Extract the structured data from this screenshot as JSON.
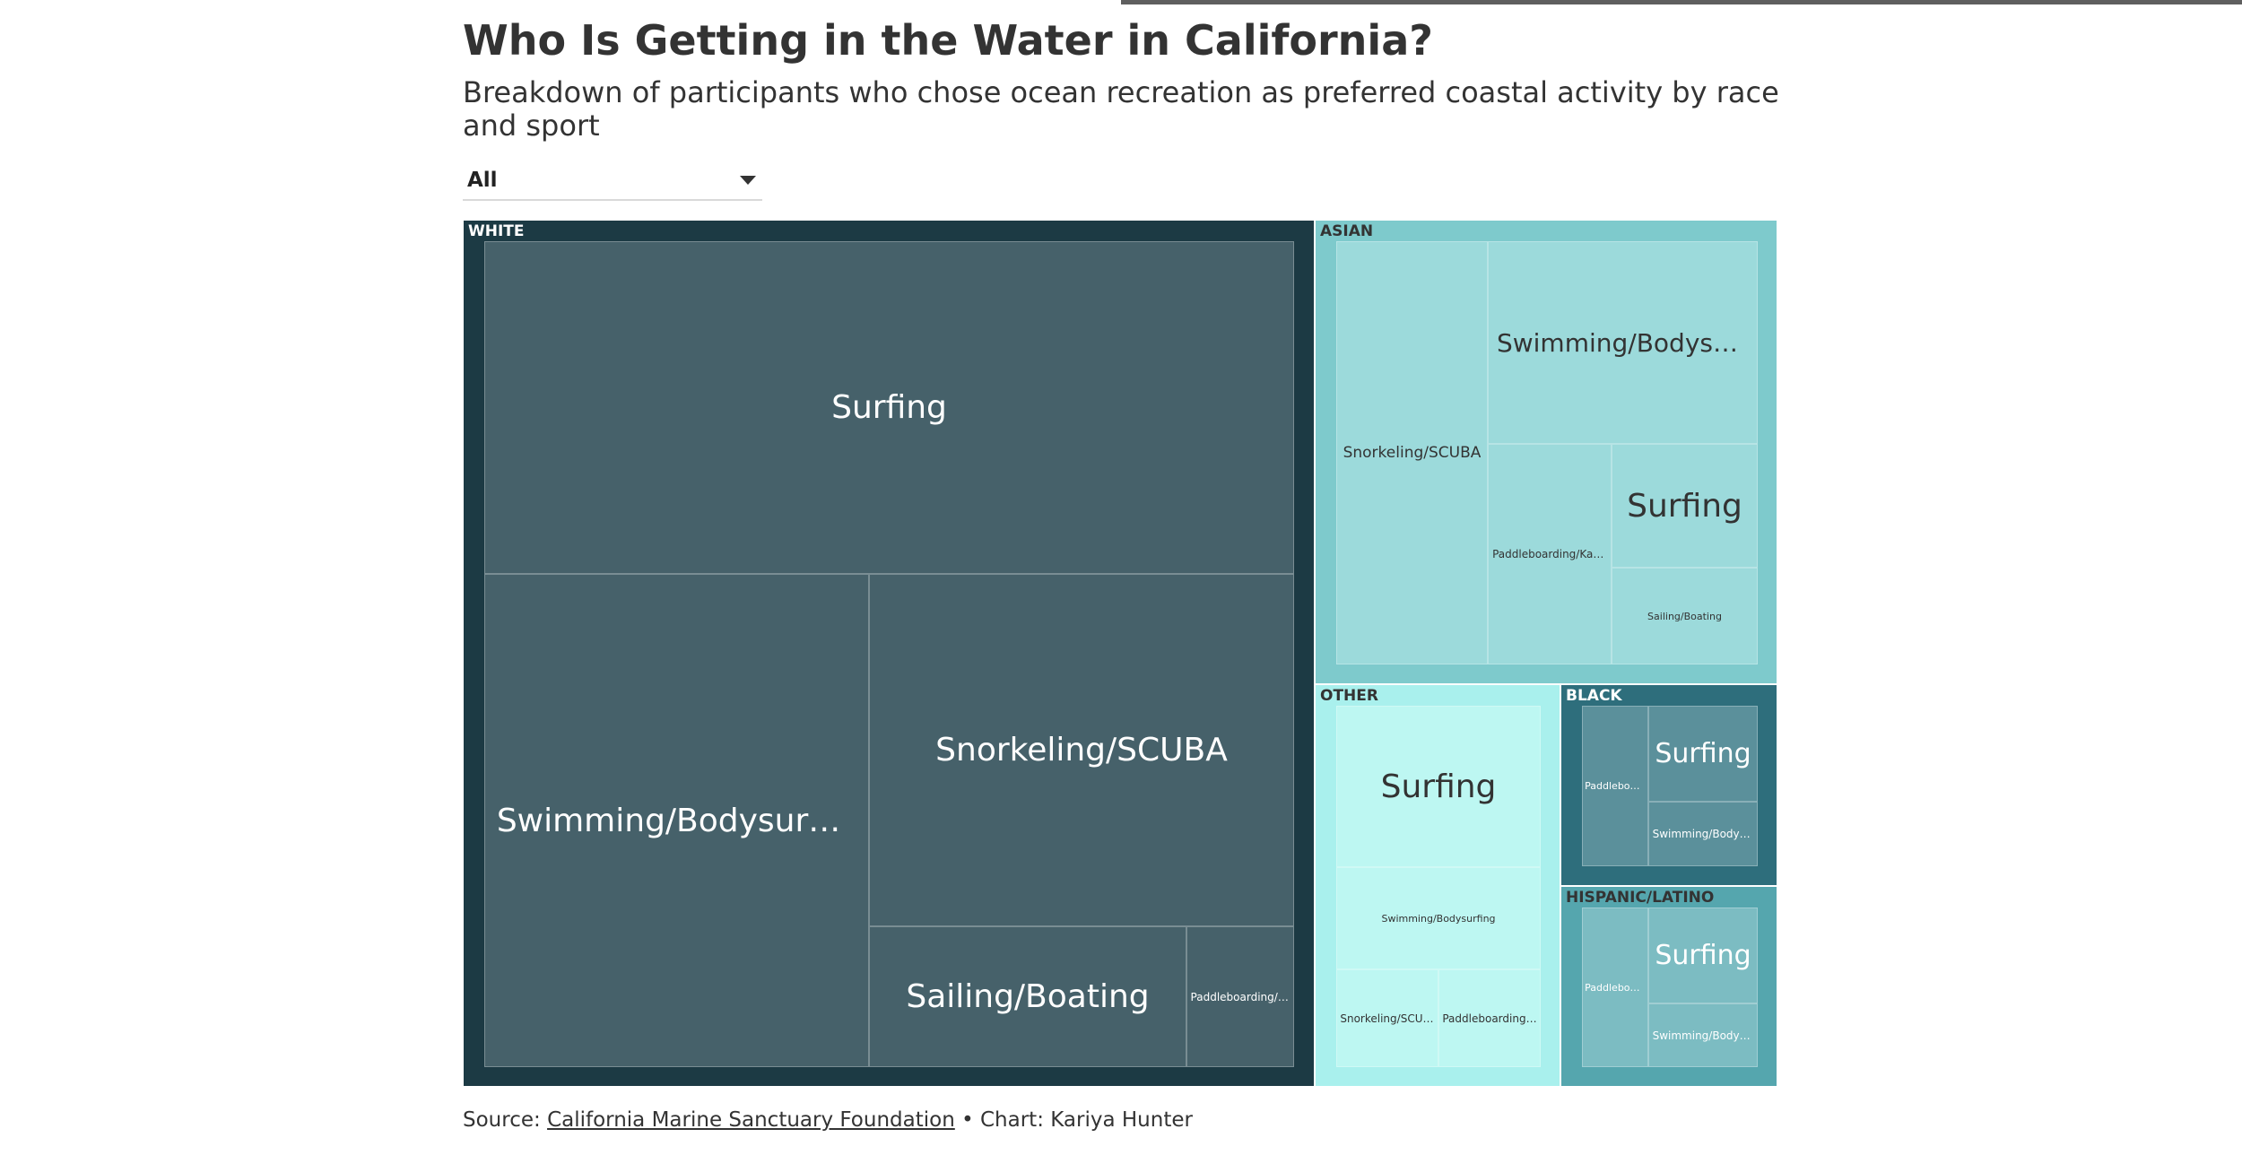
{
  "header": {
    "title": "Who Is Getting in the Water in California?",
    "subtitle": "Breakdown of participants who chose ocean recreation as preferred coastal activity by race and sport"
  },
  "filter": {
    "selected": "All"
  },
  "footer": {
    "source_prefix": "Source: ",
    "source_link": "California Marine Sanctuary Foundation",
    "credit": " • Chart: Kariya Hunter"
  },
  "chart_data": {
    "type": "treemap",
    "groups": [
      {
        "name": "White",
        "color": "#1c3a44",
        "tile_color": "#46616a",
        "text_color": "#ffffff",
        "children": [
          {
            "name": "Surfing",
            "value": 31.1
          },
          {
            "name": "Swimming/Bodysurfing",
            "value": 22.0
          },
          {
            "name": "Snorkeling/SCUBA",
            "value": 17.5
          },
          {
            "name": "Sailing/Boating",
            "value": 6.4
          },
          {
            "name": "Paddleboarding/Kayaking",
            "value": 2.1
          }
        ]
      },
      {
        "name": "Asian",
        "color": "#7ecacc",
        "tile_color": "#9cdadb",
        "text_color": "#333333",
        "children": [
          {
            "name": "Snorkeling/SCUBA",
            "value": 4.2
          },
          {
            "name": "Swimming/Bodysurfing",
            "value": 3.5
          },
          {
            "name": "Surfing",
            "value": 2.1
          },
          {
            "name": "Paddleboarding/Kayaking",
            "value": 2.1
          },
          {
            "name": "Sailing/Boating",
            "value": 1.3
          }
        ]
      },
      {
        "name": "Other",
        "color": "#a9f0ed",
        "tile_color": "#bdf7f2",
        "text_color": "#333333",
        "children": [
          {
            "name": "Surfing",
            "value": 2.3
          },
          {
            "name": "Swimming/Bodysurfing",
            "value": 1.5
          },
          {
            "name": "Snorkeling/SCUBA",
            "value": 0.9
          },
          {
            "name": "Paddleboarding/Kayaking",
            "value": 0.9
          }
        ]
      },
      {
        "name": "Black",
        "color": "#2e6e7c",
        "tile_color": "#5b909b",
        "text_color": "#ffffff",
        "children": [
          {
            "name": "Paddleboarding/Kayaking",
            "value": 0.8
          },
          {
            "name": "Surfing",
            "value": 1.1
          },
          {
            "name": "Swimming/Bodysurfing",
            "value": 0.6
          }
        ]
      },
      {
        "name": "Hispanic/Latino",
        "color": "#55a6ae",
        "tile_color": "#7cbcc2",
        "text_color": "#ffffff",
        "label_color": "#333333",
        "children": [
          {
            "name": "Paddleboarding/Kayaking",
            "value": 0.7
          },
          {
            "name": "Surfing",
            "value": 1.0
          },
          {
            "name": "Swimming/Bodysurfing",
            "value": 0.6
          }
        ]
      }
    ]
  }
}
